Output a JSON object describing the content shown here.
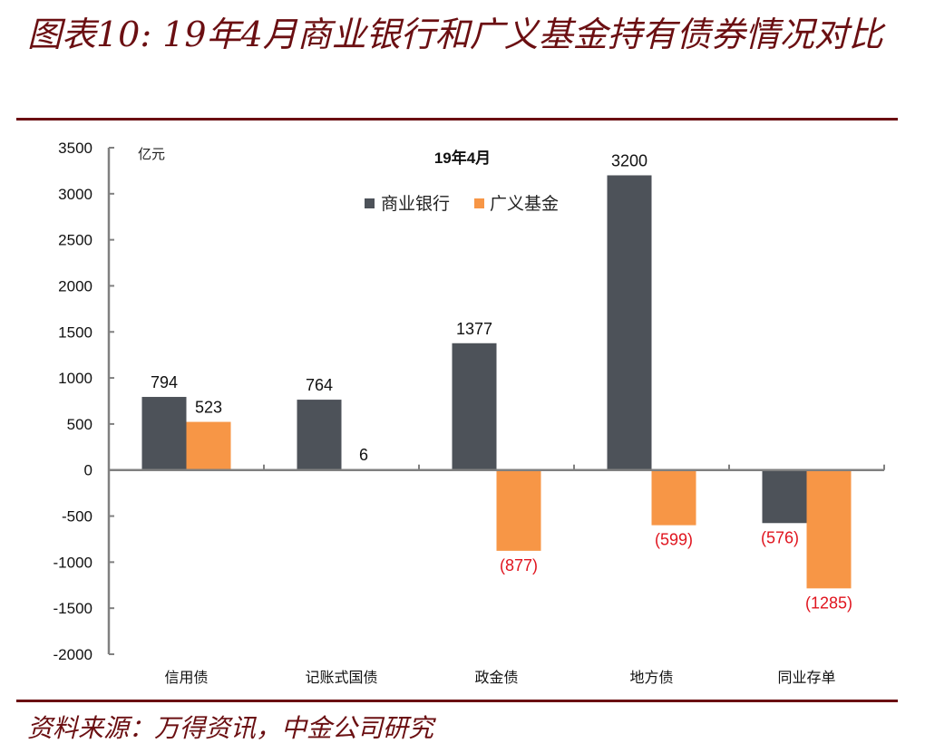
{
  "title": "图表10: 19年4月商业银行和广义基金持有债券情况对比",
  "source": "资料来源：万得资讯，中金公司研究",
  "chart_data": {
    "type": "bar",
    "title": "19年4月",
    "ylabel": "亿元",
    "xlabel": "",
    "ylim": [
      -2000,
      3500
    ],
    "yticks": [
      3500,
      3000,
      2500,
      2000,
      1500,
      1000,
      500,
      0,
      -500,
      -1000,
      -1500,
      -2000
    ],
    "grid": false,
    "legend_position": "top-center",
    "categories": [
      "信用债",
      "记账式国债",
      "政金债",
      "地方债",
      "同业存单"
    ],
    "series": [
      {
        "name": "商业银行",
        "color": "#4d5259",
        "values": [
          794,
          764,
          1377,
          3200,
          -576
        ],
        "labels": [
          "794",
          "764",
          "1377",
          "3200",
          "(576)"
        ]
      },
      {
        "name": "广义基金",
        "color": "#f79646",
        "values": [
          523,
          6,
          -877,
          -599,
          -1285
        ],
        "labels": [
          "523",
          "6",
          "(877)",
          "(599)",
          "(1285)"
        ]
      }
    ],
    "negative_label_color": "#e0141e"
  }
}
